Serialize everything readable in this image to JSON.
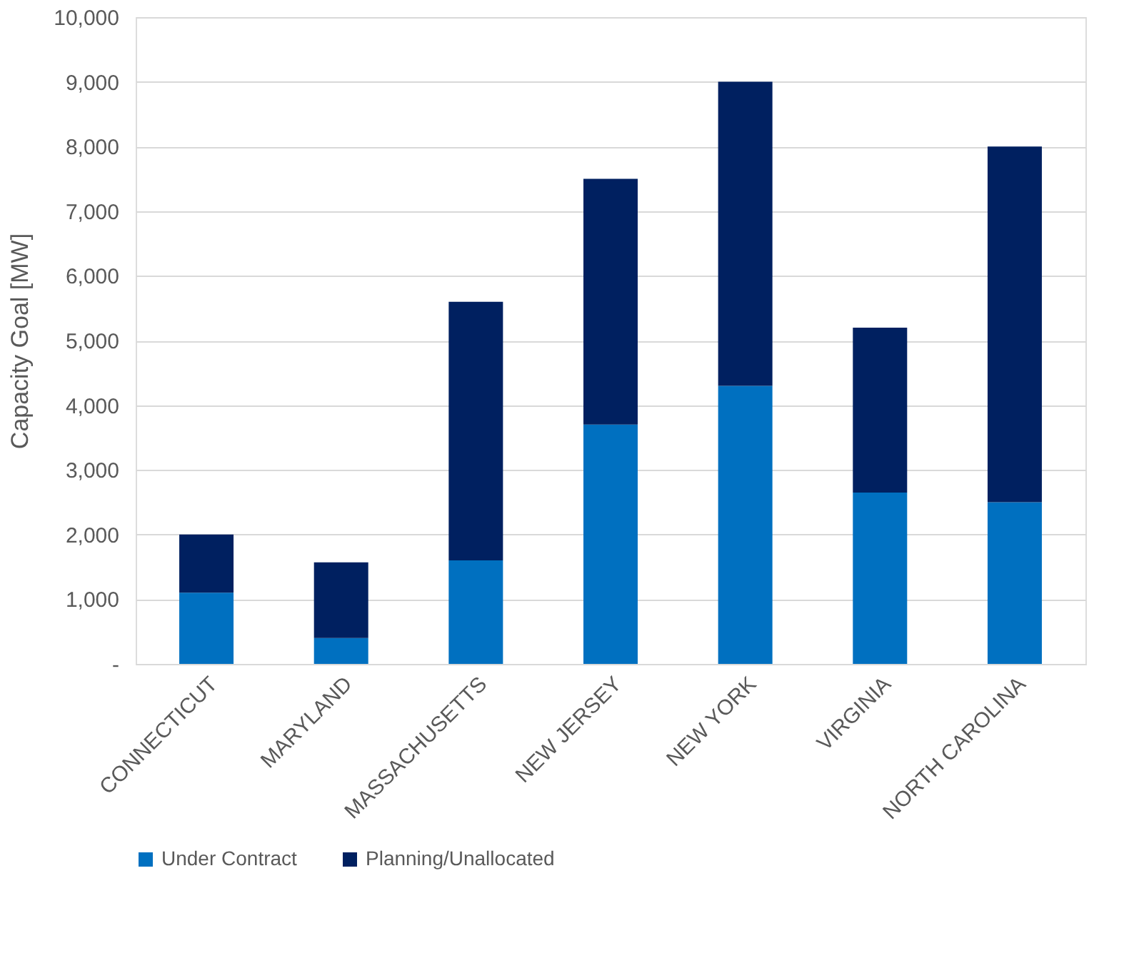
{
  "chart_data": {
    "type": "bar",
    "stacked": true,
    "ylabel": "Capacity Goal [MW]",
    "categories": [
      "CONNECTICUT",
      "MARYLAND",
      "MASSACHUSETTS",
      "NEW JERSEY",
      "NEW YORK",
      "VIRGINIA",
      "NORTH CAROLINA"
    ],
    "series": [
      {
        "name": "Under Contract",
        "color": "#0070c0",
        "values": [
          1100,
          400,
          1600,
          3700,
          4300,
          2650,
          2500
        ]
      },
      {
        "name": "Planning/Unallocated",
        "color": "#002060",
        "values": [
          900,
          1170,
          4000,
          3800,
          4700,
          2550,
          5500
        ]
      }
    ],
    "ylim": [
      0,
      10000
    ],
    "yticks": [
      {
        "value": 0,
        "label": "-"
      },
      {
        "value": 1000,
        "label": "1,000"
      },
      {
        "value": 2000,
        "label": "2,000"
      },
      {
        "value": 3000,
        "label": "3,000"
      },
      {
        "value": 4000,
        "label": "4,000"
      },
      {
        "value": 5000,
        "label": "5,000"
      },
      {
        "value": 6000,
        "label": "6,000"
      },
      {
        "value": 7000,
        "label": "7,000"
      },
      {
        "value": 8000,
        "label": "8,000"
      },
      {
        "value": 9000,
        "label": "9,000"
      },
      {
        "value": 10000,
        "label": "10,000"
      }
    ],
    "grid": "y",
    "legend": "bottom"
  }
}
